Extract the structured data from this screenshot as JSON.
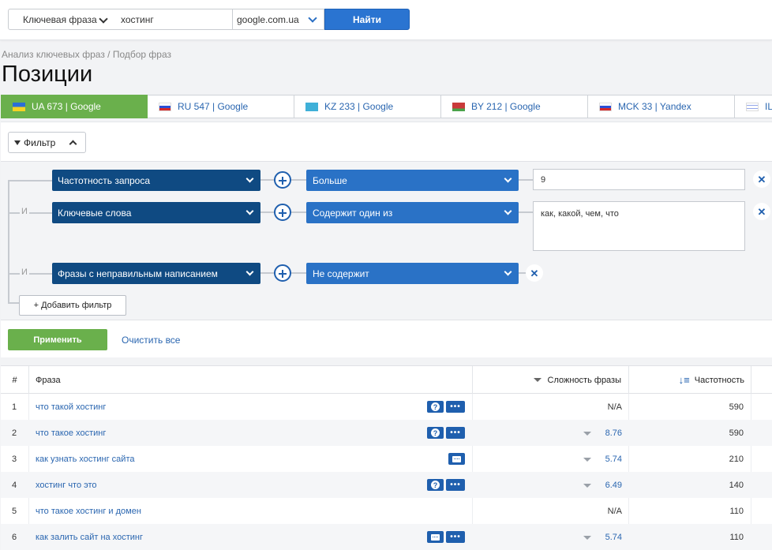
{
  "search": {
    "type_label": "Ключевая фраза",
    "query_value": "хостинг",
    "engine_value": "google.com.ua",
    "find_label": "Найти"
  },
  "breadcrumb": "Анализ ключевых фраз / Подбор фраз",
  "page_title": "Позиции",
  "db_tabs": [
    {
      "code": "UA",
      "count": "673",
      "engine": "Google",
      "label": "UA 673 | Google",
      "active": true
    },
    {
      "code": "RU",
      "count": "547",
      "engine": "Google",
      "label": "RU 547 | Google"
    },
    {
      "code": "KZ",
      "count": "233",
      "engine": "Google",
      "label": "KZ 233 | Google"
    },
    {
      "code": "BY",
      "count": "212",
      "engine": "Google",
      "label": "BY 212 | Google"
    },
    {
      "code": "MCK",
      "count": "33",
      "engine": "Yandex",
      "label": "MCK 33 | Yandex"
    },
    {
      "code": "IL",
      "label": "IL"
    }
  ],
  "filter": {
    "toggle_label": "Фильтр",
    "and_label": "И",
    "rules": [
      {
        "field": "Частотность запроса",
        "operator": "Больше",
        "value": "9"
      },
      {
        "field": "Ключевые слова",
        "operator": "Содержит один из",
        "value": "как, какой, чем, что"
      },
      {
        "field": "Фразы с неправильным написанием",
        "operator": "Не содержит",
        "value": ""
      }
    ],
    "add_label": "+ Добавить фильтр",
    "apply_label": "Применить",
    "clear_label": "Очистить все"
  },
  "table": {
    "columns": {
      "num": "#",
      "phrase": "Фраза",
      "difficulty": "Сложность фразы",
      "frequency": "Частотность"
    },
    "rows": [
      {
        "num": "1",
        "phrase": "что такой хостинг",
        "icons": [
          "question-icon",
          "more-icon"
        ],
        "difficulty": "N/A",
        "frequency": "590"
      },
      {
        "num": "2",
        "phrase": "что такое хостинг",
        "icons": [
          "question-icon",
          "more-icon"
        ],
        "difficulty": "8.76",
        "frequency": "590"
      },
      {
        "num": "3",
        "phrase": "как узнать хостинг сайта",
        "icons": [
          "comment-icon"
        ],
        "difficulty": "5.74",
        "frequency": "210"
      },
      {
        "num": "4",
        "phrase": "хостинг что это",
        "icons": [
          "question-icon",
          "more-icon"
        ],
        "difficulty": "6.49",
        "frequency": "140"
      },
      {
        "num": "5",
        "phrase": "что такое хостинг и домен",
        "icons": [],
        "difficulty": "N/A",
        "frequency": "110"
      },
      {
        "num": "6",
        "phrase": "как залить сайт на хостинг",
        "icons": [
          "comment-icon",
          "more-icon"
        ],
        "difficulty": "5.74",
        "frequency": "110"
      }
    ]
  },
  "colors": {
    "accent_blue": "#2a74d1",
    "dark_blue": "#0f4a82",
    "green": "#6ab04c"
  }
}
